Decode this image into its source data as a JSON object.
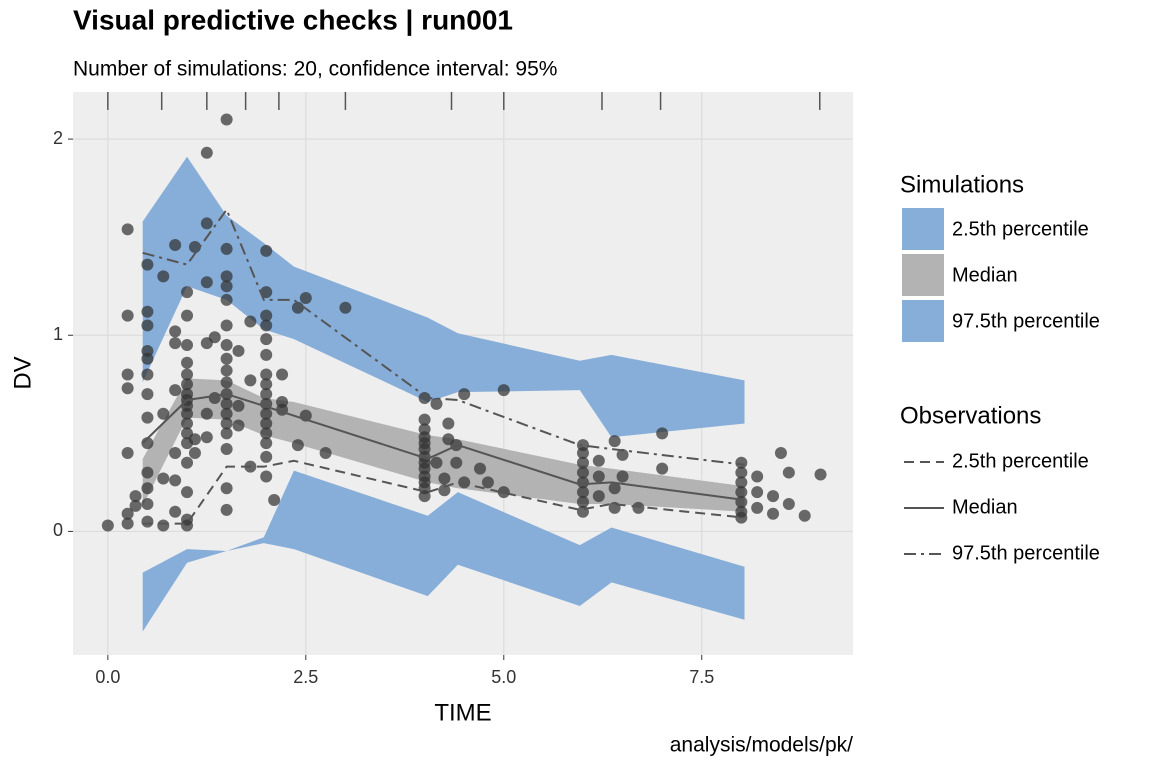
{
  "chart_data": {
    "type": "vpc",
    "title": "Visual predictive checks | run001",
    "subtitle": "Number of simulations: 20, confidence interval: 95%",
    "x_label": "TIME",
    "y_label": "DV",
    "caption": "analysis/models/pk/",
    "xlim": [
      -0.44,
      9.41
    ],
    "ylim": [
      -0.63,
      2.24
    ],
    "xticks": [
      {
        "value": 0,
        "label": "0.0"
      },
      {
        "value": 2.5,
        "label": "2.5"
      },
      {
        "value": 5,
        "label": "5.0"
      },
      {
        "value": 7.5,
        "label": "7.5"
      }
    ],
    "yticks": [
      0,
      1,
      2
    ],
    "grid": true,
    "bin_x": [
      0.44,
      1.0,
      1.5,
      1.97,
      2.35,
      4.04,
      4.42,
      5.96,
      6.36,
      8.04
    ],
    "rug_x": [
      0,
      0.68,
      1.25,
      1.74,
      2.16,
      3.0,
      4.34,
      5.0,
      6.24,
      6.98,
      8.99
    ],
    "simulations_title": "Simulations",
    "simulations": [
      {
        "name": "2.5th percentile",
        "color": "#87aed9",
        "lower": [
          -0.51,
          -0.16,
          -0.1,
          -0.06,
          -0.09,
          -0.33,
          -0.17,
          -0.38,
          -0.26,
          -0.45
        ],
        "upper": [
          -0.21,
          -0.09,
          -0.1,
          -0.03,
          0.31,
          0.08,
          0.2,
          -0.07,
          0.02,
          -0.18
        ]
      },
      {
        "name": "Median",
        "color": "#b3b3b3",
        "lower": [
          0.13,
          0.58,
          0.57,
          0.49,
          0.45,
          0.25,
          0.22,
          0.14,
          0.14,
          0.1
        ],
        "upper": [
          0.37,
          0.78,
          0.77,
          0.68,
          0.66,
          0.49,
          0.47,
          0.34,
          0.32,
          0.23
        ]
      },
      {
        "name": "97.5th percentile",
        "color": "#87aed9",
        "lower": [
          0.76,
          1.25,
          1.18,
          1.03,
          0.98,
          0.66,
          0.71,
          0.72,
          0.48,
          0.55
        ],
        "upper": [
          1.58,
          1.91,
          1.61,
          1.47,
          1.35,
          1.09,
          1.01,
          0.87,
          0.9,
          0.77
        ]
      }
    ],
    "observations_title": "Observations",
    "observed": [
      {
        "name": "2.5th percentile",
        "color": "#555555",
        "dash": "10,6",
        "values": [
          0.04,
          0.04,
          0.33,
          0.33,
          0.36,
          0.2,
          0.25,
          0.11,
          0.14,
          0.07
        ]
      },
      {
        "name": "Median",
        "color": "#555555",
        "dash": "none",
        "values": [
          0.45,
          0.67,
          0.7,
          0.64,
          0.59,
          0.37,
          0.44,
          0.24,
          0.25,
          0.16
        ]
      },
      {
        "name": "97.5th percentile",
        "color": "#555555",
        "dash": "12,5,3,5",
        "values": [
          1.42,
          1.36,
          1.64,
          1.18,
          1.18,
          0.68,
          0.67,
          0.44,
          0.42,
          0.34
        ]
      }
    ],
    "points": {
      "color": "#333333",
      "x": [
        0,
        0.25,
        0.25,
        0.25,
        0.25,
        0.25,
        0.25,
        0.25,
        0.35,
        0.35,
        0.5,
        0.5,
        0.5,
        0.5,
        0.5,
        0.5,
        0.5,
        0.5,
        0.5,
        0.5,
        0.5,
        0.5,
        0.5,
        0.7,
        0.7,
        0.7,
        0.7,
        0.85,
        0.85,
        0.85,
        0.85,
        0.85,
        0.85,
        0.85,
        1.0,
        1.0,
        1.0,
        1.0,
        1.0,
        1.0,
        1.0,
        1.0,
        1.0,
        1.0,
        1.0,
        1.0,
        1.0,
        1.0,
        1.0,
        1.0,
        1.0,
        1.1,
        1.1,
        1.1,
        1.25,
        1.25,
        1.25,
        1.25,
        1.25,
        1.25,
        1.35,
        1.35,
        1.5,
        1.5,
        1.5,
        1.5,
        1.5,
        1.5,
        1.5,
        1.5,
        1.5,
        1.5,
        1.5,
        1.5,
        1.5,
        1.5,
        1.5,
        1.5,
        1.5,
        1.5,
        1.65,
        1.65,
        1.65,
        1.8,
        1.8,
        1.8,
        2.0,
        2.0,
        2.0,
        2.0,
        2.0,
        2.0,
        2.0,
        2.0,
        2.0,
        2.0,
        2.0,
        2.0,
        2.0,
        2.0,
        2.0,
        2.0,
        2.1,
        2.2,
        2.2,
        2.2,
        2.4,
        2.4,
        2.5,
        2.5,
        2.75,
        3.0,
        4.0,
        4.0,
        4.0,
        4.0,
        4.0,
        4.0,
        4.0,
        4.0,
        4.0,
        4.0,
        4.0,
        4.0,
        4.0,
        4.15,
        4.15,
        4.25,
        4.25,
        4.3,
        4.3,
        4.4,
        4.4,
        4.5,
        4.5,
        4.7,
        4.8,
        5.0,
        5.0,
        6.0,
        6.0,
        6.0,
        6.0,
        6.0,
        6.0,
        6.0,
        6.0,
        6.2,
        6.2,
        6.2,
        6.4,
        6.4,
        6.4,
        6.5,
        6.5,
        6.7,
        7.0,
        7.0,
        8.0,
        8.0,
        8.0,
        8.0,
        8.0,
        8.0,
        8.0,
        8.2,
        8.2,
        8.2,
        8.4,
        8.4,
        8.5,
        8.6,
        8.6,
        8.8,
        9.0
      ],
      "y": [
        0.03,
        1.54,
        1.1,
        0.8,
        0.73,
        0.4,
        0.09,
        0.04,
        0.18,
        0.13,
        1.36,
        1.12,
        1.05,
        0.92,
        0.88,
        0.8,
        0.7,
        0.58,
        0.45,
        0.3,
        0.22,
        0.14,
        0.05,
        1.3,
        0.6,
        0.27,
        0.03,
        1.46,
        1.02,
        0.96,
        0.72,
        0.4,
        0.26,
        0.1,
        1.22,
        1.1,
        0.95,
        0.86,
        0.8,
        0.75,
        0.7,
        0.67,
        0.64,
        0.6,
        0.55,
        0.5,
        0.45,
        0.35,
        0.2,
        0.06,
        0.03,
        1.45,
        0.47,
        0.4,
        1.93,
        1.57,
        1.27,
        0.96,
        0.6,
        0.48,
        0.99,
        0.68,
        2.1,
        1.44,
        1.3,
        1.25,
        1.18,
        1.05,
        0.95,
        0.88,
        0.82,
        0.76,
        0.7,
        0.65,
        0.6,
        0.55,
        0.5,
        0.42,
        0.22,
        0.11,
        0.92,
        0.64,
        0.54,
        1.07,
        0.77,
        0.33,
        1.43,
        1.22,
        1.1,
        1.05,
        0.98,
        0.9,
        0.8,
        0.75,
        0.7,
        0.65,
        0.6,
        0.55,
        0.5,
        0.45,
        0.38,
        0.28,
        0.16,
        0.8,
        0.66,
        0.62,
        1.14,
        0.44,
        1.19,
        0.59,
        0.4,
        1.14,
        0.68,
        0.57,
        0.52,
        0.48,
        0.45,
        0.42,
        0.38,
        0.35,
        0.32,
        0.28,
        0.25,
        0.22,
        0.18,
        0.65,
        0.35,
        0.27,
        0.21,
        0.55,
        0.47,
        0.44,
        0.35,
        0.7,
        0.25,
        0.32,
        0.25,
        0.2,
        0.72,
        0.44,
        0.4,
        0.35,
        0.3,
        0.25,
        0.2,
        0.15,
        0.1,
        0.36,
        0.28,
        0.18,
        0.46,
        0.22,
        0.12,
        0.39,
        0.28,
        0.12,
        0.5,
        0.32,
        0.35,
        0.3,
        0.25,
        0.2,
        0.15,
        0.1,
        0.07,
        0.28,
        0.2,
        0.12,
        0.18,
        0.09,
        0.4,
        0.3,
        0.14,
        0.08,
        0.29
      ]
    }
  }
}
